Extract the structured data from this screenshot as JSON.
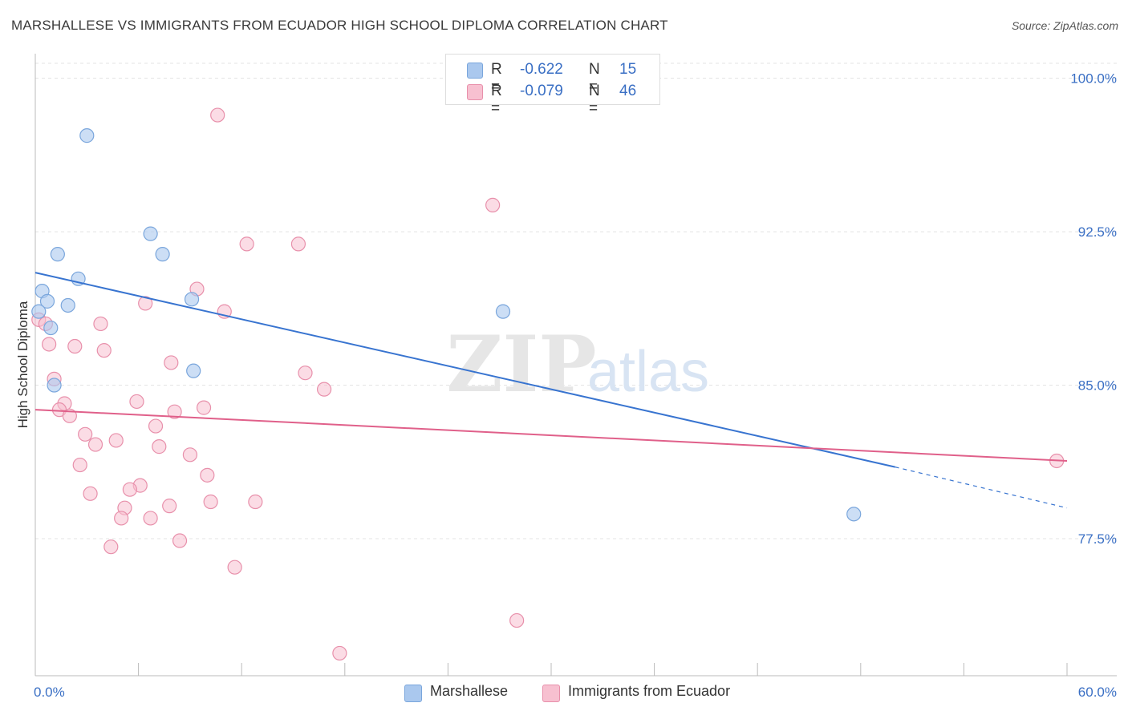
{
  "title": "MARSHALLESE VS IMMIGRANTS FROM ECUADOR HIGH SCHOOL DIPLOMA CORRELATION CHART",
  "source": "Source: ZipAtlas.com",
  "watermark": {
    "zip": "ZIP",
    "atlas": "atlas"
  },
  "legend_stats": [
    {
      "r_label": "R =",
      "r_value": "-0.622",
      "n_label": "N =",
      "n_value": "15",
      "color": "#aac8ee",
      "border": "#7aa6dc"
    },
    {
      "r_label": "R =",
      "r_value": "-0.079",
      "n_label": "N =",
      "n_value": "46",
      "color": "#f7c0d0",
      "border": "#e890ab"
    }
  ],
  "bottom_legend": [
    {
      "label": "Marshallese",
      "color": "#aac8ee",
      "border": "#7aa6dc"
    },
    {
      "label": "Immigrants from Ecuador",
      "color": "#f7c0d0",
      "border": "#e890ab"
    }
  ],
  "colors": {
    "blue": "#3874d0",
    "pink": "#e0608a",
    "blue_fill": "#aac8ee",
    "pink_fill": "#f7c0d0",
    "grid": "#e3e3e3",
    "tick_label": "#3a6fc4"
  },
  "chart_data": {
    "type": "scatter",
    "title": "MARSHALLESE VS IMMIGRANTS FROM ECUADOR HIGH SCHOOL DIPLOMA CORRELATION CHART",
    "xlabel": "",
    "ylabel": "High School Diploma",
    "xlim": [
      0,
      60
    ],
    "ylim": [
      70.8,
      101.2
    ],
    "x_tick_labels": [
      "0.0%",
      "60.0%"
    ],
    "y_ticks": [
      77.5,
      85.0,
      92.5,
      100.0
    ],
    "y_tick_labels": [
      "77.5%",
      "85.0%",
      "92.5%",
      "100.0%"
    ],
    "series": [
      {
        "name": "Marshallese",
        "points": [
          [
            3.0,
            97.2
          ],
          [
            6.7,
            92.4
          ],
          [
            1.3,
            91.4
          ],
          [
            7.4,
            91.4
          ],
          [
            2.5,
            90.2
          ],
          [
            0.4,
            89.6
          ],
          [
            0.7,
            89.1
          ],
          [
            1.9,
            88.9
          ],
          [
            9.1,
            89.2
          ],
          [
            0.2,
            88.6
          ],
          [
            0.9,
            87.8
          ],
          [
            9.2,
            85.7
          ],
          [
            1.1,
            85.0
          ],
          [
            27.2,
            88.6
          ],
          [
            47.6,
            78.7
          ]
        ],
        "trend": {
          "x0": 0.0,
          "y0": 90.5,
          "x1": 50.0,
          "y1": 81.0,
          "dash_x1": 60.0,
          "dash_y1": 79.0
        }
      },
      {
        "name": "Immigrants from Ecuador",
        "points": [
          [
            10.6,
            98.2
          ],
          [
            26.6,
            93.8
          ],
          [
            12.3,
            91.9
          ],
          [
            15.3,
            91.9
          ],
          [
            9.4,
            89.7
          ],
          [
            6.4,
            89.0
          ],
          [
            11.0,
            88.6
          ],
          [
            0.2,
            88.2
          ],
          [
            0.6,
            88.0
          ],
          [
            3.8,
            88.0
          ],
          [
            0.8,
            87.0
          ],
          [
            2.3,
            86.9
          ],
          [
            4.0,
            86.7
          ],
          [
            7.9,
            86.1
          ],
          [
            15.7,
            85.6
          ],
          [
            1.1,
            85.3
          ],
          [
            16.8,
            84.8
          ],
          [
            5.9,
            84.2
          ],
          [
            1.7,
            84.1
          ],
          [
            1.4,
            83.8
          ],
          [
            8.1,
            83.7
          ],
          [
            9.8,
            83.9
          ],
          [
            2.0,
            83.5
          ],
          [
            7.0,
            83.0
          ],
          [
            2.9,
            82.6
          ],
          [
            4.7,
            82.3
          ],
          [
            3.5,
            82.1
          ],
          [
            7.2,
            82.0
          ],
          [
            9.0,
            81.6
          ],
          [
            2.6,
            81.1
          ],
          [
            10.0,
            80.6
          ],
          [
            6.1,
            80.1
          ],
          [
            5.5,
            79.9
          ],
          [
            3.2,
            79.7
          ],
          [
            7.8,
            79.1
          ],
          [
            10.2,
            79.3
          ],
          [
            12.8,
            79.3
          ],
          [
            5.2,
            79.0
          ],
          [
            5.0,
            78.5
          ],
          [
            6.7,
            78.5
          ],
          [
            8.4,
            77.4
          ],
          [
            4.4,
            77.1
          ],
          [
            11.6,
            76.1
          ],
          [
            28.0,
            73.5
          ],
          [
            17.7,
            71.9
          ],
          [
            59.4,
            81.3
          ]
        ],
        "trend": {
          "x0": 0.0,
          "y0": 83.8,
          "x1": 60.0,
          "y1": 81.3
        }
      }
    ]
  }
}
